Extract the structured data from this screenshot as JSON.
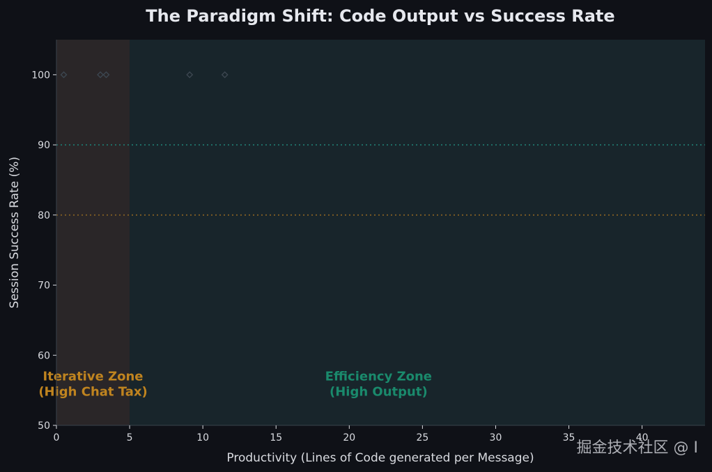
{
  "chart_data": {
    "type": "scatter",
    "title": "The Paradigm Shift: Code Output vs Success Rate",
    "xlabel": "Productivity (Lines of Code generated per Message)",
    "ylabel": "Session Success Rate (%)",
    "xlim": [
      0,
      44.3
    ],
    "ylim": [
      50,
      105
    ],
    "xticks": [
      0,
      5,
      10,
      15,
      20,
      25,
      30,
      35,
      40
    ],
    "yticks": [
      50,
      60,
      70,
      80,
      90,
      100
    ],
    "grid": false,
    "legend": "none",
    "points": [
      {
        "x": 0.5,
        "y": 100
      },
      {
        "x": 3.0,
        "y": 100
      },
      {
        "x": 3.4,
        "y": 100
      },
      {
        "x": 9.1,
        "y": 100
      },
      {
        "x": 11.5,
        "y": 100
      }
    ],
    "reference_lines": [
      {
        "y": 90,
        "color": "#1f6f68"
      },
      {
        "y": 80,
        "color": "#7a5a23"
      }
    ],
    "zones": [
      {
        "x_start": 0,
        "x_end": 5,
        "label_line1": "Iterative Zone",
        "label_line2": "(High Chat Tax)",
        "color": "#c0841f"
      },
      {
        "x_start": 5,
        "x_end": 44.3,
        "label_line1": "Efficiency Zone",
        "label_line2": "(High Output)",
        "color": "#1a8a6c"
      }
    ],
    "zone_label_y": 56,
    "zone_label_x": [
      2.5,
      22.0
    ]
  },
  "watermark": "掘金技术社区 @ I",
  "colors": {
    "background": "#0f1117",
    "plot_background": "#1a2128",
    "iterative_fill": "#2a2628",
    "efficiency_fill": "#18252b",
    "axis": "#d9dbe0",
    "marker": "#3c4650"
  }
}
